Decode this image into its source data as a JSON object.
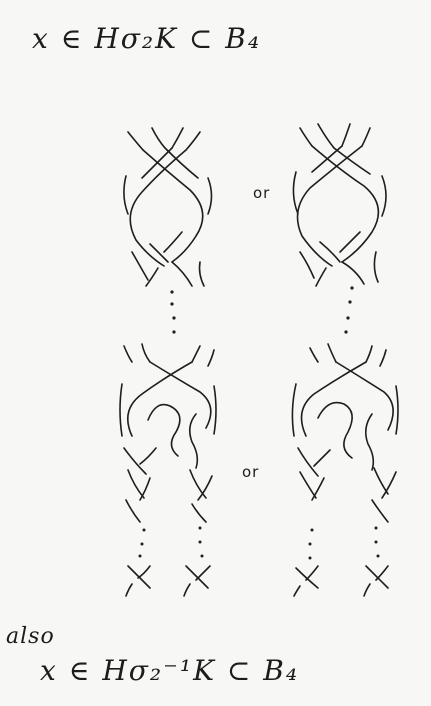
{
  "header": {
    "formula": "x ∈ Hσ₂K ⊂ B₄"
  },
  "labels": {
    "or_top": "or",
    "or_bottom": "or"
  },
  "footer": {
    "also": "also",
    "formula": "x ∈ Hσ₂⁻¹K ⊂ B₄"
  }
}
